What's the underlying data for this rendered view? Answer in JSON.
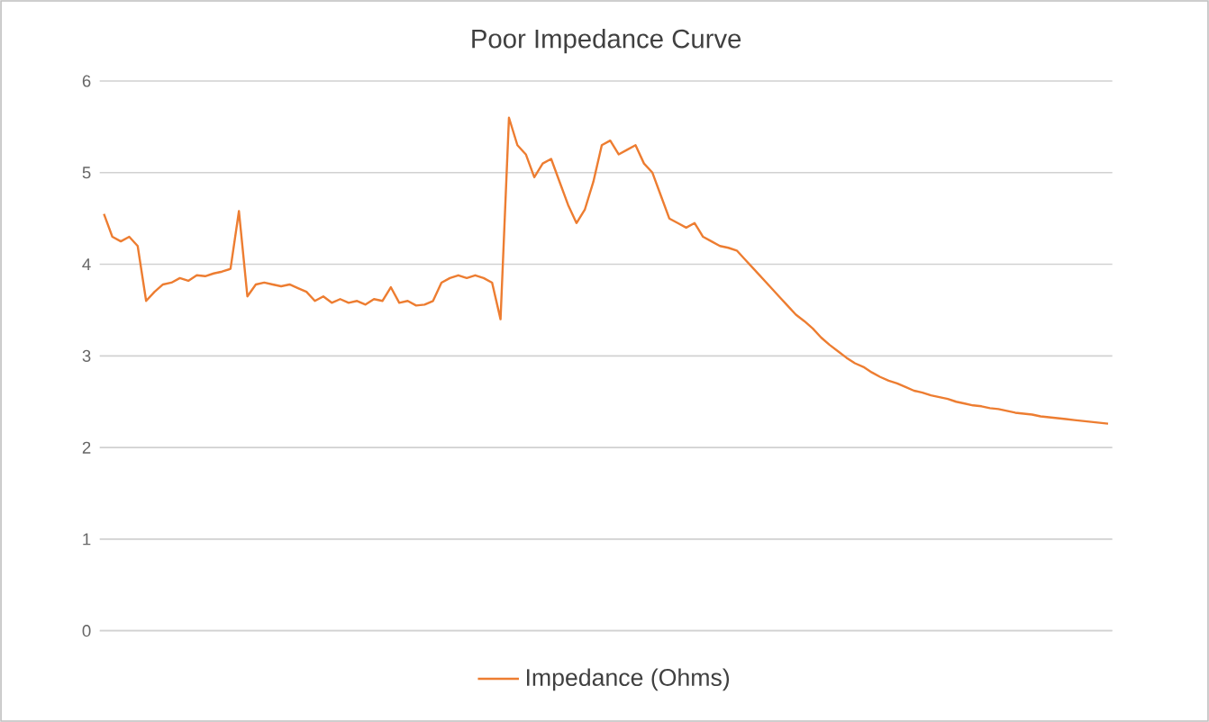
{
  "chart_data": {
    "type": "line",
    "title": "Poor Impedance Curve",
    "categories": [
      null,
      null,
      null,
      null,
      null,
      null,
      null,
      null,
      null,
      null,
      null,
      null,
      null,
      null,
      null,
      null,
      null,
      null,
      null,
      null,
      null,
      null,
      null,
      null,
      null,
      null,
      null,
      null,
      null,
      null,
      null,
      null,
      null,
      null,
      null,
      null,
      null,
      null,
      null,
      null,
      null,
      null,
      null,
      null,
      null,
      null,
      null,
      null,
      null,
      null,
      null,
      null,
      null,
      null,
      null,
      null,
      null,
      null,
      null,
      null,
      null,
      null,
      null,
      null,
      null,
      null,
      null,
      null,
      null,
      null,
      null,
      null,
      null,
      null,
      null,
      null,
      null,
      null,
      null,
      null,
      null,
      null,
      null,
      null,
      null,
      null,
      null,
      null,
      null,
      null,
      null,
      null,
      null,
      null,
      null,
      null,
      null,
      null,
      null,
      null,
      null,
      null,
      null,
      null,
      null,
      null,
      null,
      null,
      null,
      null,
      null,
      null,
      null,
      null,
      null,
      null,
      null,
      null,
      null,
      null
    ],
    "series": [
      {
        "name": "Impedance (Ohms)",
        "color": "#ed7d31",
        "values": [
          4.55,
          4.3,
          4.25,
          4.3,
          4.2,
          3.6,
          3.7,
          3.78,
          3.8,
          3.85,
          3.82,
          3.88,
          3.87,
          3.9,
          3.92,
          3.95,
          4.58,
          3.65,
          3.78,
          3.8,
          3.78,
          3.76,
          3.78,
          3.74,
          3.7,
          3.6,
          3.65,
          3.58,
          3.62,
          3.58,
          3.6,
          3.56,
          3.62,
          3.6,
          3.75,
          3.58,
          3.6,
          3.55,
          3.56,
          3.6,
          3.8,
          3.85,
          3.88,
          3.85,
          3.88,
          3.85,
          3.8,
          3.4,
          5.6,
          5.3,
          5.2,
          4.95,
          5.1,
          5.15,
          4.9,
          4.65,
          4.45,
          4.6,
          4.9,
          5.3,
          5.35,
          5.2,
          5.25,
          5.3,
          5.1,
          5.0,
          4.75,
          4.5,
          4.45,
          4.4,
          4.45,
          4.3,
          4.25,
          4.2,
          4.18,
          4.15,
          4.05,
          3.95,
          3.85,
          3.75,
          3.65,
          3.55,
          3.45,
          3.38,
          3.3,
          3.2,
          3.12,
          3.05,
          2.98,
          2.92,
          2.88,
          2.82,
          2.77,
          2.73,
          2.7,
          2.66,
          2.62,
          2.6,
          2.57,
          2.55,
          2.53,
          2.5,
          2.48,
          2.46,
          2.45,
          2.43,
          2.42,
          2.4,
          2.38,
          2.37,
          2.36,
          2.34,
          2.33,
          2.32,
          2.31,
          2.3,
          2.29,
          2.28,
          2.27,
          2.26
        ]
      }
    ],
    "ylim": [
      0,
      6
    ],
    "yticks": [
      0,
      1,
      2,
      3,
      4,
      5,
      6
    ],
    "grid": "y",
    "legend": "bottom",
    "marker": "none",
    "line_style": "solid"
  }
}
